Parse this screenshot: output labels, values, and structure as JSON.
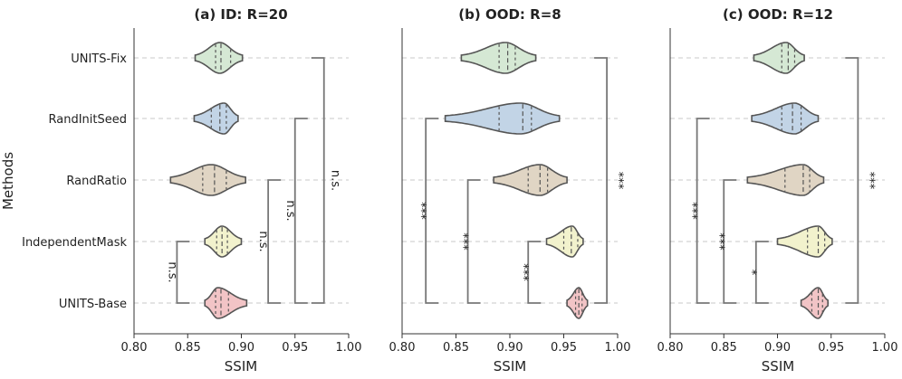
{
  "figure": {
    "ylabel": "Methods",
    "categories": [
      "UNITS-Fix",
      "RandInitSeed",
      "RandRatio",
      "IndependentMask",
      "UNITS-Base"
    ],
    "colors": [
      "#d5e8d4",
      "#c2d4e6",
      "#e0d5c4",
      "#f2f2cd",
      "#f2c4c6"
    ]
  },
  "chart_data": [
    {
      "type": "violin",
      "title": "(a) ID: R=20",
      "xlabel": "SSIM",
      "xlim": [
        0.8,
        1.0
      ],
      "xticks": [
        "0.80",
        "0.85",
        "0.90",
        "0.95",
        "1.00"
      ],
      "series": [
        {
          "name": "UNITS-Fix",
          "min": 0.857,
          "max": 0.901,
          "q1": 0.876,
          "median": 0.881,
          "q3": 0.89,
          "peak": 0.88
        },
        {
          "name": "RandInitSeed",
          "min": 0.856,
          "max": 0.897,
          "q1": 0.872,
          "median": 0.88,
          "q3": 0.886,
          "peak": 0.884
        },
        {
          "name": "RandRatio",
          "min": 0.834,
          "max": 0.904,
          "q1": 0.864,
          "median": 0.875,
          "q3": 0.886,
          "peak": 0.872
        },
        {
          "name": "IndependentMask",
          "min": 0.866,
          "max": 0.9,
          "q1": 0.877,
          "median": 0.882,
          "q3": 0.887,
          "peak": 0.882
        },
        {
          "name": "UNITS-Base",
          "min": 0.866,
          "max": 0.905,
          "q1": 0.876,
          "median": 0.881,
          "q3": 0.888,
          "peak": 0.878
        }
      ],
      "brackets": [
        {
          "from": "IndependentMask",
          "to": "UNITS-Base",
          "label": "n.s.",
          "x": 0.84
        },
        {
          "from": "RandRatio",
          "to": "UNITS-Base",
          "label": "n.s.",
          "x": 0.925
        },
        {
          "from": "RandInitSeed",
          "to": "UNITS-Base",
          "label": "n.s.",
          "x": 0.95
        },
        {
          "from": "UNITS-Fix",
          "to": "UNITS-Base",
          "label": "n.s.",
          "x": 0.977
        }
      ]
    },
    {
      "type": "violin",
      "title": "(b) OOD: R=8",
      "xlabel": "SSIM",
      "xlim": [
        0.8,
        1.0
      ],
      "xticks": [
        "0.80",
        "0.85",
        "0.90",
        "0.95",
        "1.00"
      ],
      "series": [
        {
          "name": "UNITS-Fix",
          "min": 0.855,
          "max": 0.924,
          "q1": 0.89,
          "median": 0.898,
          "q3": 0.905,
          "peak": 0.896
        },
        {
          "name": "RandInitSeed",
          "min": 0.84,
          "max": 0.946,
          "q1": 0.89,
          "median": 0.912,
          "q3": 0.92,
          "peak": 0.91
        },
        {
          "name": "RandRatio",
          "min": 0.885,
          "max": 0.953,
          "q1": 0.917,
          "median": 0.928,
          "q3": 0.935,
          "peak": 0.928
        },
        {
          "name": "IndependentMask",
          "min": 0.934,
          "max": 0.968,
          "q1": 0.95,
          "median": 0.957,
          "q3": 0.963,
          "peak": 0.958
        },
        {
          "name": "UNITS-Base",
          "min": 0.953,
          "max": 0.972,
          "q1": 0.961,
          "median": 0.964,
          "q3": 0.967,
          "peak": 0.964
        }
      ],
      "brackets": [
        {
          "from": "IndependentMask",
          "to": "UNITS-Base",
          "label": "***",
          "x": 0.917
        },
        {
          "from": "RandRatio",
          "to": "UNITS-Base",
          "label": "***",
          "x": 0.861
        },
        {
          "from": "RandInitSeed",
          "to": "UNITS-Base",
          "label": "***",
          "x": 0.822
        },
        {
          "from": "UNITS-Fix",
          "to": "UNITS-Base",
          "label": "***",
          "x": 0.99
        }
      ]
    },
    {
      "type": "violin",
      "title": "(c) OOD: R=12",
      "xlabel": "SSIM",
      "xlim": [
        0.8,
        1.0
      ],
      "xticks": [
        "0.80",
        "0.85",
        "0.90",
        "0.95",
        "1.00"
      ],
      "series": [
        {
          "name": "UNITS-Fix",
          "min": 0.878,
          "max": 0.925,
          "q1": 0.904,
          "median": 0.91,
          "q3": 0.916,
          "peak": 0.908
        },
        {
          "name": "RandInitSeed",
          "min": 0.876,
          "max": 0.938,
          "q1": 0.904,
          "median": 0.914,
          "q3": 0.922,
          "peak": 0.916
        },
        {
          "name": "RandRatio",
          "min": 0.872,
          "max": 0.943,
          "q1": 0.907,
          "median": 0.924,
          "q3": 0.93,
          "peak": 0.924
        },
        {
          "name": "IndependentMask",
          "min": 0.9,
          "max": 0.951,
          "q1": 0.928,
          "median": 0.938,
          "q3": 0.944,
          "peak": 0.938
        },
        {
          "name": "UNITS-Base",
          "min": 0.922,
          "max": 0.947,
          "q1": 0.932,
          "median": 0.938,
          "q3": 0.942,
          "peak": 0.938
        }
      ],
      "brackets": [
        {
          "from": "IndependentMask",
          "to": "UNITS-Base",
          "label": "*",
          "x": 0.88
        },
        {
          "from": "RandRatio",
          "to": "UNITS-Base",
          "label": "***",
          "x": 0.85
        },
        {
          "from": "RandInitSeed",
          "to": "UNITS-Base",
          "label": "***",
          "x": 0.825
        },
        {
          "from": "UNITS-Fix",
          "to": "UNITS-Base",
          "label": "***",
          "x": 0.975
        }
      ]
    }
  ]
}
